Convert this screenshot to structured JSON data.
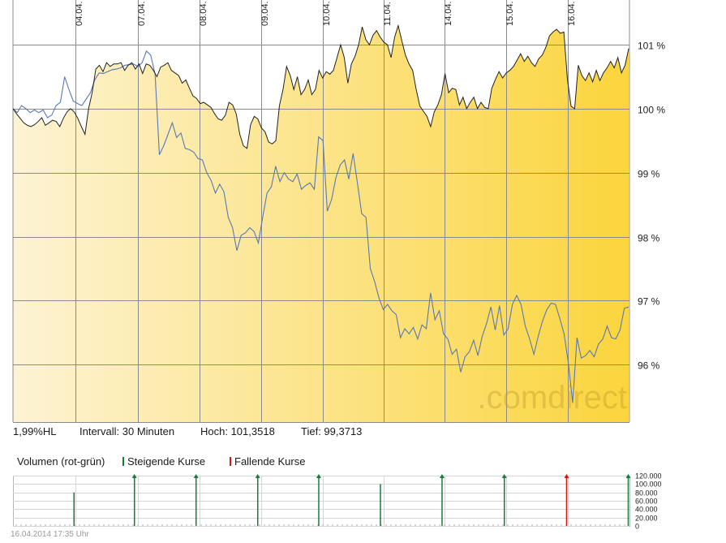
{
  "chart_data": [
    {
      "type": "line",
      "x_tick_labels": [
        "04.04.",
        "07.04.",
        "08.04.",
        "09.04.",
        "10.04.",
        "11.04.",
        "14.04.",
        "15.04.",
        "16.04."
      ],
      "y_ticks": [
        96,
        97,
        98,
        99,
        100,
        101
      ],
      "y_tick_labels": [
        "96 %",
        "97 %",
        "98 %",
        "99 %",
        "100 %",
        "101 %"
      ],
      "ylim": [
        95.1,
        101.7
      ],
      "grid": true,
      "watermark": ".comdirect",
      "series": [
        {
          "key": "price",
          "values": [
            100.0,
            99.92,
            99.85,
            99.78,
            99.74,
            99.72,
            99.75,
            99.8,
            99.86,
            99.74,
            99.78,
            99.82,
            99.8,
            99.72,
            99.85,
            99.95,
            100.0,
            99.95,
            99.85,
            99.72,
            99.6,
            100.0,
            100.25,
            100.62,
            100.68,
            100.58,
            100.72,
            100.66,
            100.7,
            100.7,
            100.72,
            100.6,
            100.68,
            100.72,
            100.62,
            100.7,
            100.55,
            100.7,
            100.68,
            100.6,
            100.5,
            100.65,
            100.68,
            100.72,
            100.6,
            100.56,
            100.52,
            100.4,
            100.45,
            100.32,
            100.2,
            100.16,
            100.08,
            100.1,
            100.06,
            100.02,
            99.92,
            99.84,
            99.82,
            99.9,
            100.1,
            100.06,
            99.92,
            99.6,
            99.42,
            99.38,
            99.75,
            99.88,
            99.84,
            99.7,
            99.64,
            99.48,
            99.45,
            99.5,
            100.05,
            100.3,
            100.66,
            100.52,
            100.3,
            100.5,
            100.22,
            100.3,
            100.45,
            100.22,
            100.3,
            100.6,
            100.48,
            100.58,
            100.54,
            100.6,
            100.8,
            101.0,
            100.8,
            100.4,
            100.7,
            100.82,
            101.0,
            101.28,
            101.08,
            101.0,
            101.15,
            101.22,
            101.12,
            101.04,
            101.0,
            100.8,
            101.12,
            101.3,
            101.06,
            100.84,
            100.7,
            100.6,
            100.3,
            100.04,
            99.96,
            99.88,
            99.72,
            99.95,
            100.06,
            100.22,
            100.55,
            100.25,
            100.32,
            100.3,
            100.06,
            100.18,
            100.0,
            100.1,
            100.18,
            100.0,
            100.1,
            100.02,
            100.0,
            100.32,
            100.46,
            100.58,
            100.48,
            100.56,
            100.6,
            100.66,
            100.76,
            100.86,
            100.74,
            100.82,
            100.72,
            100.66,
            100.78,
            100.84,
            100.96,
            101.14,
            101.2,
            101.24,
            101.18,
            101.2,
            100.46,
            100.04,
            100.0,
            100.68,
            100.52,
            100.44,
            100.56,
            100.42,
            100.6,
            100.44,
            100.56,
            100.64,
            100.74,
            100.64,
            100.8,
            100.56,
            100.68,
            100.94
          ]
        },
        {
          "key": "comparison",
          "values": [
            100.0,
            99.94,
            100.05,
            100.0,
            99.94,
            99.98,
            99.94,
            99.98,
            99.86,
            99.9,
            100.05,
            100.1,
            100.5,
            100.3,
            100.12,
            100.08,
            100.05,
            100.15,
            100.25,
            100.45,
            100.56,
            100.55,
            100.58,
            100.61,
            100.62,
            100.64,
            100.68,
            100.69,
            100.7,
            100.66,
            100.72,
            100.9,
            100.84,
            100.54,
            99.28,
            99.42,
            99.6,
            99.78,
            99.55,
            99.62,
            99.38,
            99.36,
            99.32,
            99.22,
            99.2,
            99.0,
            98.88,
            98.68,
            98.82,
            98.7,
            98.3,
            98.14,
            97.78,
            98.02,
            98.06,
            98.14,
            98.08,
            97.9,
            98.3,
            98.68,
            98.78,
            99.1,
            98.86,
            99.0,
            98.9,
            98.86,
            98.98,
            98.74,
            98.8,
            98.84,
            98.74,
            99.56,
            99.5,
            98.4,
            98.58,
            98.92,
            99.12,
            99.2,
            98.9,
            99.3,
            98.84,
            98.36,
            98.3,
            97.5,
            97.3,
            97.04,
            96.86,
            96.94,
            96.84,
            96.78,
            96.42,
            96.56,
            96.48,
            96.58,
            96.4,
            96.62,
            96.56,
            97.12,
            96.7,
            96.84,
            96.48,
            96.4,
            96.16,
            96.24,
            95.88,
            96.12,
            96.2,
            96.38,
            96.14,
            96.44,
            96.64,
            96.9,
            96.54,
            96.92,
            96.46,
            96.56,
            96.94,
            97.08,
            96.94,
            96.6,
            96.4,
            96.16,
            96.44,
            96.68,
            96.86,
            96.96,
            96.94,
            96.72,
            96.48,
            96.02,
            95.4,
            96.42,
            96.1,
            96.14,
            96.22,
            96.12,
            96.32,
            96.4,
            96.6,
            96.42,
            96.4,
            96.54,
            96.88,
            96.9
          ]
        }
      ]
    },
    {
      "type": "bar",
      "title": "Volumen (rot-grün)",
      "legend": [
        {
          "label": "Steigende Kurse",
          "color": "#1a7a3a"
        },
        {
          "label": "Fallende Kurse",
          "color": "#cc1a1a"
        }
      ],
      "y_ticks": [
        0,
        20000,
        40000,
        60000,
        80000,
        100000,
        120000
      ],
      "y_tick_labels": [
        "0",
        "20.000",
        "40.000",
        "60.000",
        "80.000",
        "100.000",
        "120.000"
      ],
      "ylim": [
        0,
        120000
      ],
      "bars": [
        {
          "x": 0.099,
          "value": 80000,
          "dir": "up"
        },
        {
          "x": 0.197,
          "value": 120000,
          "dir": "up"
        },
        {
          "x": 0.297,
          "value": 120000,
          "dir": "up"
        },
        {
          "x": 0.397,
          "value": 120000,
          "dir": "up"
        },
        {
          "x": 0.496,
          "value": 120000,
          "dir": "up"
        },
        {
          "x": 0.596,
          "value": 100000,
          "dir": "up"
        },
        {
          "x": 0.696,
          "value": 120000,
          "dir": "up"
        },
        {
          "x": 0.797,
          "value": 120000,
          "dir": "up"
        },
        {
          "x": 0.898,
          "value": 120000,
          "dir": "down"
        },
        {
          "x": 0.998,
          "value": 120000,
          "dir": "up"
        }
      ]
    }
  ],
  "info": {
    "instrument": "1,99%HL",
    "interval": "Intervall: 30 Minuten",
    "high": "Hoch: 101,3518",
    "low": "Tief: 99,3713"
  },
  "timestamp": "16.04.2014 17:35 Uhr",
  "colors": {
    "price_line": "#222222",
    "comparison_line": "#5a78b4",
    "fill_start": "#fdf3d4",
    "fill_end": "#fbd53d",
    "grid": "#8a8a8a",
    "watermark": "#c8a22e"
  }
}
